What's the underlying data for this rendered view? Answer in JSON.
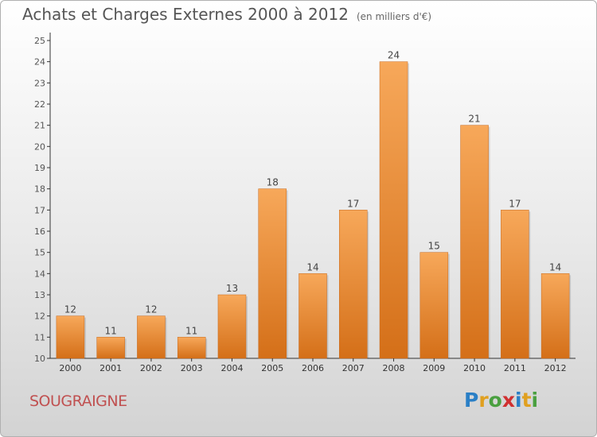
{
  "header": {
    "title": "Achats et Charges Externes 2000 à 2012",
    "unit": "(en milliers d'€)"
  },
  "location": "SOUGRAIGNE",
  "logo": {
    "text": "Proxiti",
    "colors": [
      "#2a7fc6",
      "#e0a020",
      "#4aa040",
      "#d03030",
      "#2a7fc6",
      "#e0a020",
      "#4aa040"
    ]
  },
  "colors": {
    "bar_top": "#f7a85a",
    "bar_bottom": "#d46f18",
    "axis": "#333333"
  },
  "chart_data": {
    "type": "bar",
    "categories": [
      "2000",
      "2001",
      "2002",
      "2003",
      "2004",
      "2005",
      "2006",
      "2007",
      "2008",
      "2009",
      "2010",
      "2011",
      "2012"
    ],
    "values": [
      12,
      11,
      12,
      11,
      13,
      18,
      14,
      17,
      24,
      15,
      21,
      17,
      14
    ],
    "ylim": [
      10,
      25
    ],
    "yticks": [
      10,
      11,
      12,
      13,
      14,
      15,
      16,
      17,
      18,
      19,
      20,
      21,
      22,
      23,
      24,
      25
    ],
    "grid": false,
    "title": "Achats et Charges Externes 2000 à 2012",
    "xlabel": "",
    "ylabel": ""
  }
}
